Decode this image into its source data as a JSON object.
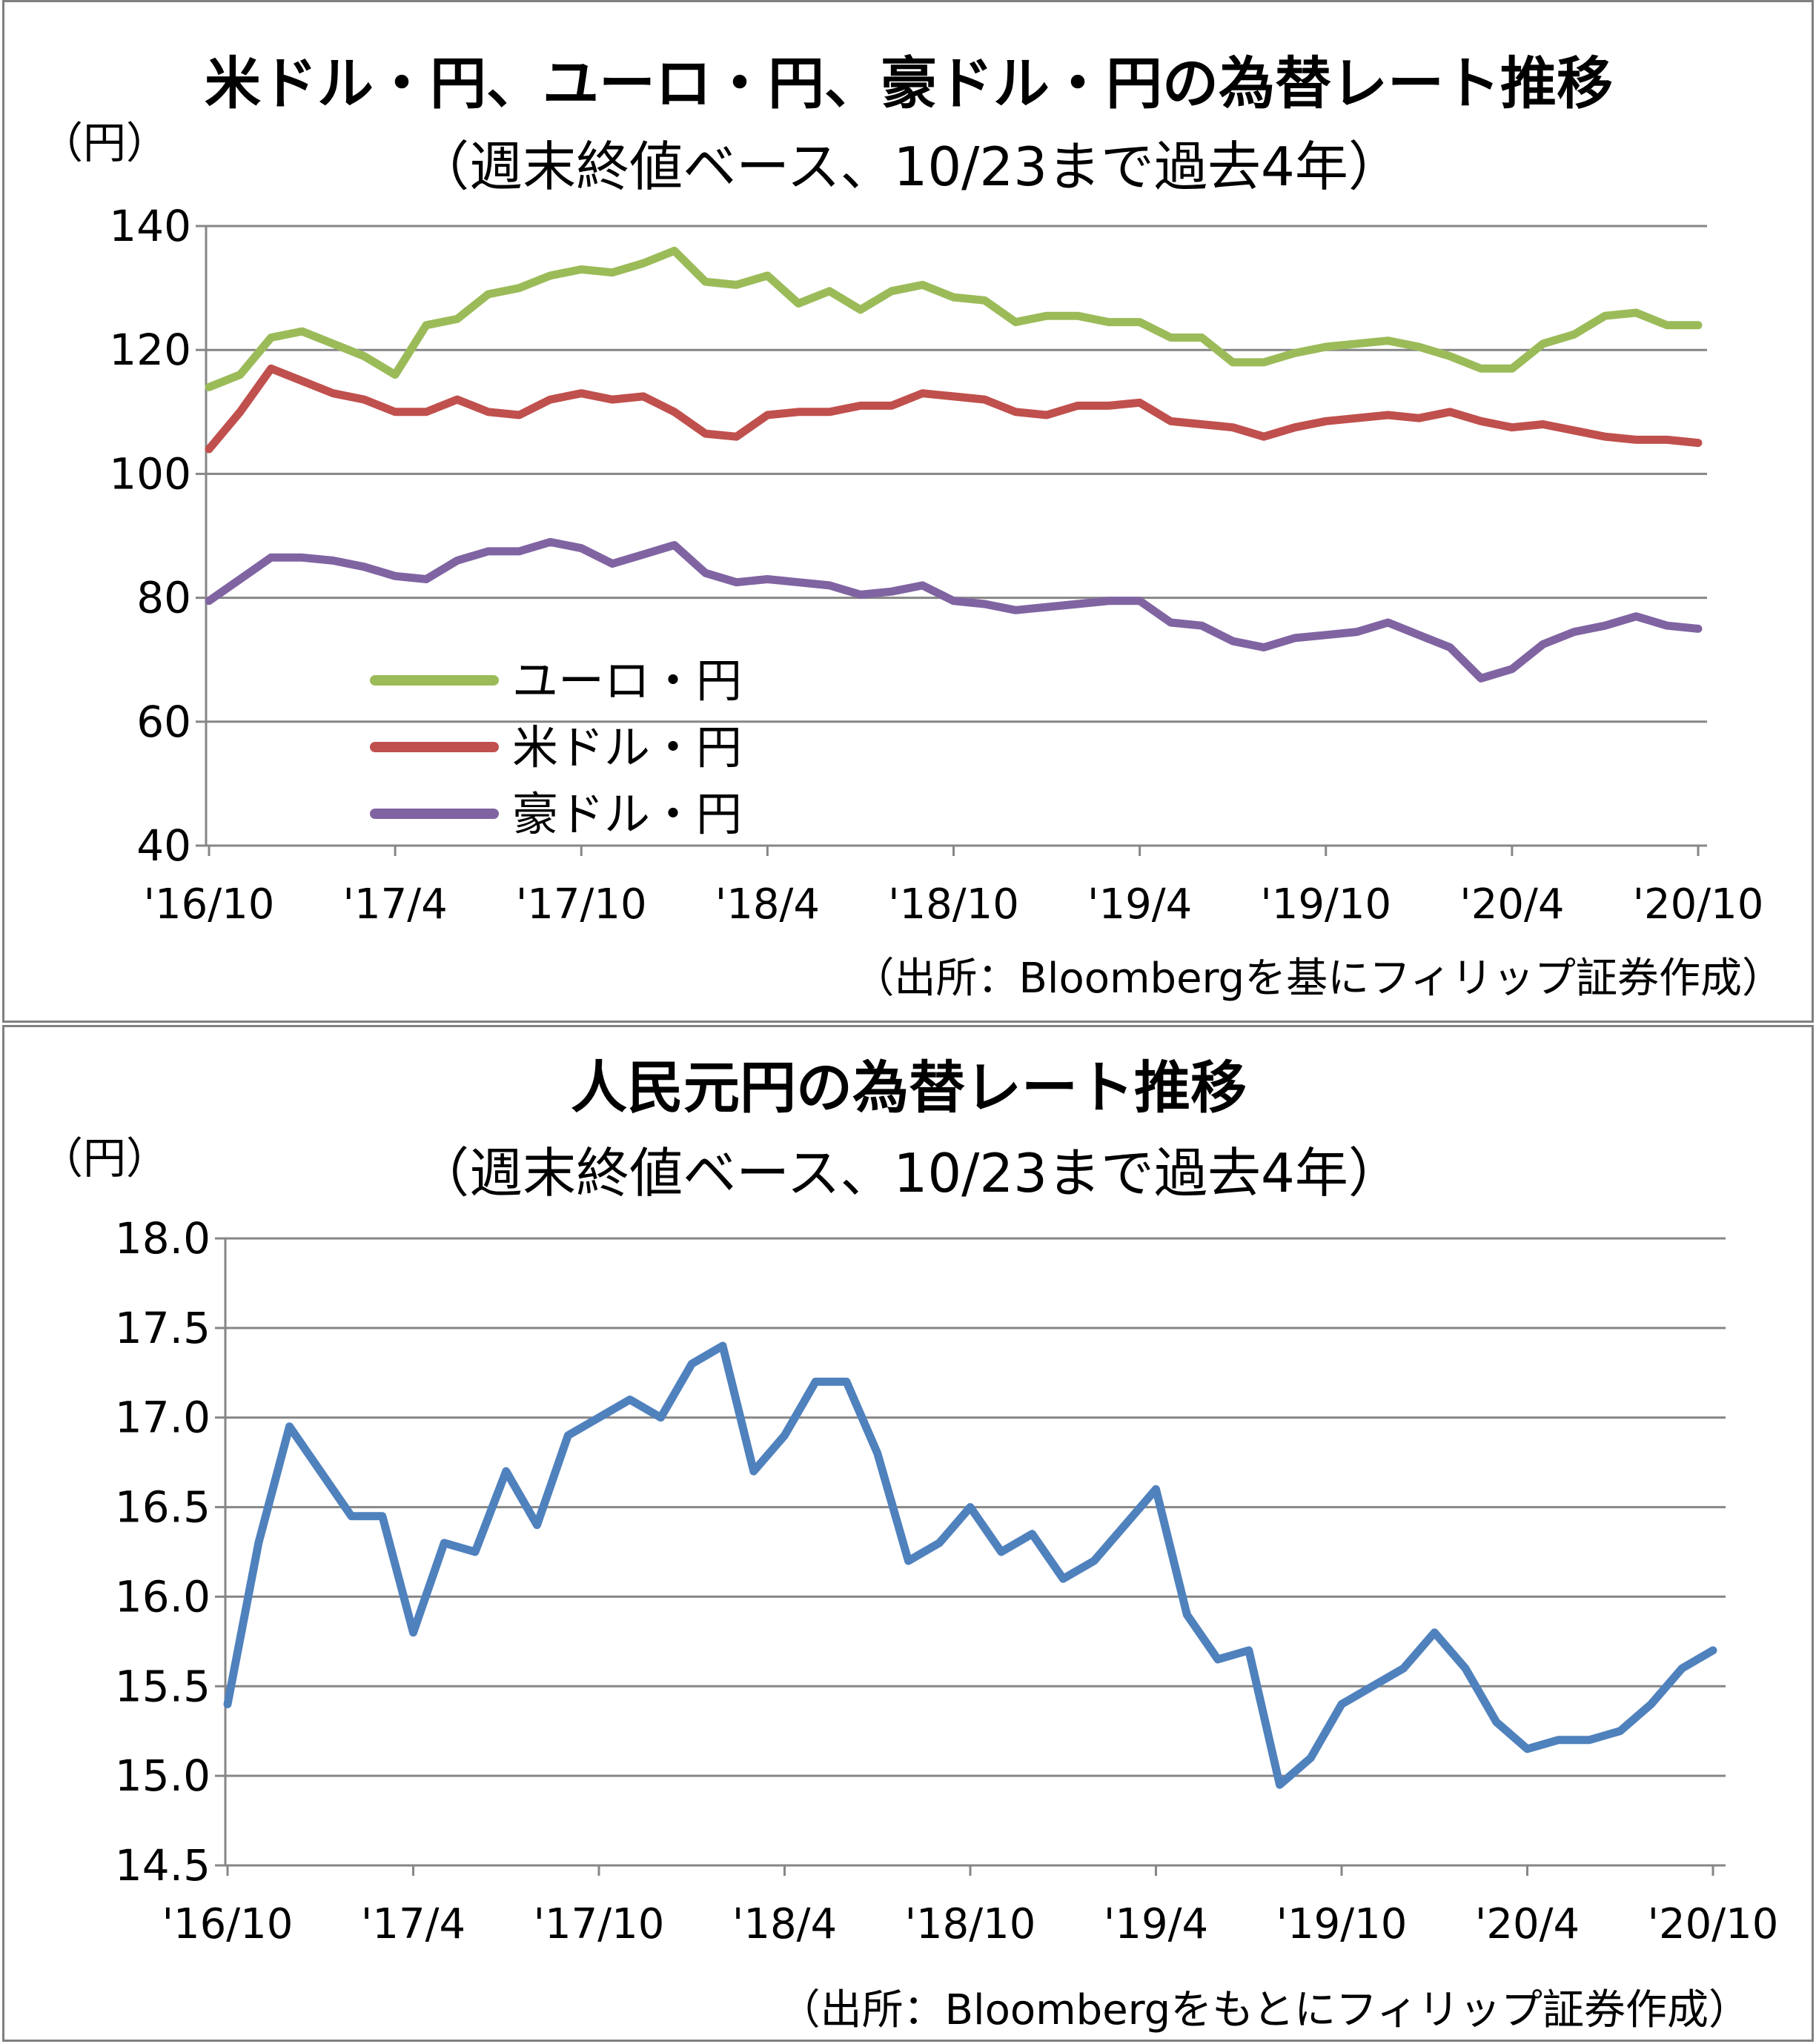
{
  "chart_data": [
    {
      "type": "line",
      "title": "米ドル・円、ユーロ・円、豪ドル・円の為替レート推移",
      "subtitle": "（週末終値ベース、10/23まで過去4年）",
      "unit_label": "（円）",
      "source": "（出所：Bloombergを基にフィリップ証券作成）",
      "ylim": [
        40,
        140
      ],
      "yticks": [
        "140",
        "120",
        "100",
        "80",
        "60",
        "40"
      ],
      "xticks": [
        "'16/10",
        "'17/4",
        "'17/10",
        "'18/4",
        "'18/10",
        "'19/4",
        "'19/10",
        "'20/4",
        "'20/10"
      ],
      "grid": true,
      "legend": "bottom-left",
      "x": [
        "'16/10",
        "'16/11",
        "'16/12",
        "'17/1",
        "'17/2",
        "'17/3",
        "'17/4",
        "'17/5",
        "'17/6",
        "'17/7",
        "'17/8",
        "'17/9",
        "'17/10",
        "'17/11",
        "'17/12",
        "'18/1",
        "'18/2",
        "'18/3",
        "'18/4",
        "'18/5",
        "'18/6",
        "'18/7",
        "'18/8",
        "'18/9",
        "'18/10",
        "'18/11",
        "'18/12",
        "'19/1",
        "'19/2",
        "'19/3",
        "'19/4",
        "'19/5",
        "'19/6",
        "'19/7",
        "'19/8",
        "'19/9",
        "'19/10",
        "'19/11",
        "'19/12",
        "'20/1",
        "'20/2",
        "'20/3",
        "'20/4",
        "'20/5",
        "'20/6",
        "'20/7",
        "'20/8",
        "'20/9",
        "'20/10"
      ],
      "series": [
        {
          "name": "ユーロ・円",
          "color": "#9BBB59",
          "values": [
            114,
            116,
            122,
            123,
            121,
            119,
            116,
            124,
            125,
            129,
            130,
            132,
            133,
            132.5,
            134,
            136,
            131,
            130.5,
            132,
            127.5,
            129.5,
            126.5,
            129.5,
            130.5,
            128.5,
            128,
            124.5,
            125.5,
            125.5,
            124.5,
            124.5,
            122,
            122,
            118,
            118,
            119.5,
            120.5,
            121,
            121.5,
            120.5,
            119,
            117,
            117,
            121,
            122.5,
            125.5,
            126,
            124,
            124
          ]
        },
        {
          "name": "米ドル・円",
          "color": "#C0504D",
          "values": [
            104,
            110,
            117,
            115,
            113,
            112,
            110,
            110,
            112,
            110,
            109.5,
            112,
            113,
            112,
            112.5,
            110,
            106.5,
            106,
            109.5,
            110,
            110,
            111,
            111,
            113,
            112.5,
            112,
            110,
            109.5,
            111,
            111,
            111.5,
            108.5,
            108,
            107.5,
            106,
            107.5,
            108.5,
            109,
            109.5,
            109,
            110,
            108.5,
            107.5,
            108,
            107,
            106,
            105.5,
            105.5,
            105
          ]
        },
        {
          "name": "豪ドル・円",
          "color": "#8064A2",
          "values": [
            79.5,
            83,
            86.5,
            86.5,
            86,
            85,
            83.5,
            83,
            86,
            87.5,
            87.5,
            89,
            88,
            85.5,
            87,
            88.5,
            84,
            82.5,
            83,
            82.5,
            82,
            80.5,
            81,
            82,
            79.5,
            79,
            78,
            78.5,
            79,
            79.5,
            79.5,
            76,
            75.5,
            73,
            72,
            73.5,
            74,
            74.5,
            76,
            74,
            72,
            67,
            68.5,
            72.5,
            74.5,
            75.5,
            77,
            75.5,
            75
          ]
        }
      ]
    },
    {
      "type": "line",
      "title": "人民元円の為替レート推移",
      "subtitle": "（週末終値ベース、10/23まで過去4年）",
      "unit_label": "（円）",
      "source": "（出所：Bloombergをもとにフィリップ証券作成）",
      "ylim": [
        14.5,
        18.0
      ],
      "yticks": [
        "18.0",
        "17.5",
        "17.0",
        "16.5",
        "16.0",
        "15.5",
        "15.0",
        "14.5"
      ],
      "xticks": [
        "'16/10",
        "'17/4",
        "'17/10",
        "'18/4",
        "'18/10",
        "'19/4",
        "'19/10",
        "'20/4",
        "'20/10"
      ],
      "grid": true,
      "x": [
        "'16/10",
        "'16/11",
        "'16/12",
        "'17/1",
        "'17/2",
        "'17/3",
        "'17/4",
        "'17/5",
        "'17/6",
        "'17/7",
        "'17/8",
        "'17/9",
        "'17/10",
        "'17/11",
        "'17/12",
        "'18/1",
        "'18/2",
        "'18/3",
        "'18/4",
        "'18/5",
        "'18/6",
        "'18/7",
        "'18/8",
        "'18/9",
        "'18/10",
        "'18/11",
        "'18/12",
        "'19/1",
        "'19/2",
        "'19/3",
        "'19/4",
        "'19/5",
        "'19/6",
        "'19/7",
        "'19/8",
        "'19/9",
        "'19/10",
        "'19/11",
        "'19/12",
        "'20/1",
        "'20/2",
        "'20/3",
        "'20/4",
        "'20/5",
        "'20/6",
        "'20/7",
        "'20/8",
        "'20/9",
        "'20/10"
      ],
      "series": [
        {
          "name": "人民元円",
          "color": "#4F81BD",
          "values": [
            15.4,
            16.3,
            16.95,
            16.7,
            16.45,
            16.45,
            15.8,
            16.3,
            16.25,
            16.7,
            16.4,
            16.9,
            17.0,
            17.1,
            17.0,
            17.3,
            17.4,
            16.7,
            16.9,
            17.2,
            17.2,
            16.8,
            16.2,
            16.3,
            16.5,
            16.25,
            16.35,
            16.1,
            16.2,
            16.4,
            16.6,
            15.9,
            15.65,
            15.7,
            14.95,
            15.1,
            15.4,
            15.5,
            15.6,
            15.8,
            15.6,
            15.3,
            15.15,
            15.2,
            15.2,
            15.25,
            15.4,
            15.6,
            15.7
          ]
        }
      ]
    }
  ]
}
